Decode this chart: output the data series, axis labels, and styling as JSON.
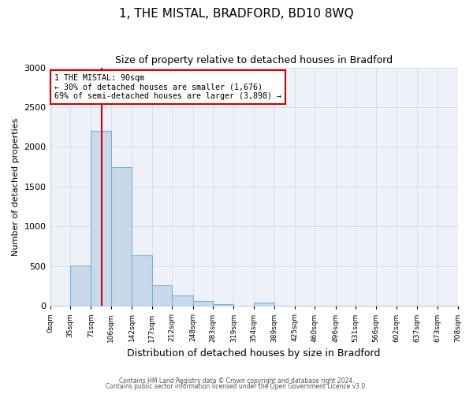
{
  "title": "1, THE MISTAL, BRADFORD, BD10 8WQ",
  "subtitle": "Size of property relative to detached houses in Bradford",
  "xlabel": "Distribution of detached houses by size in Bradford",
  "ylabel": "Number of detached properties",
  "bin_edges": [
    0,
    35,
    71,
    106,
    142,
    177,
    212,
    248,
    283,
    319,
    354,
    389,
    425,
    460,
    496,
    531,
    566,
    602,
    637,
    673,
    708
  ],
  "bin_labels": [
    "0sqm",
    "35sqm",
    "71sqm",
    "106sqm",
    "142sqm",
    "177sqm",
    "212sqm",
    "248sqm",
    "283sqm",
    "319sqm",
    "354sqm",
    "389sqm",
    "425sqm",
    "460sqm",
    "496sqm",
    "531sqm",
    "566sqm",
    "602sqm",
    "637sqm",
    "673sqm",
    "708sqm"
  ],
  "counts": [
    0,
    510,
    2200,
    1750,
    640,
    265,
    130,
    65,
    25,
    5,
    40,
    5,
    0,
    0,
    0,
    0,
    0,
    0,
    0,
    0
  ],
  "bar_color": "#c8daea",
  "bar_edge_color": "#7bafd4",
  "property_line_x": 90,
  "annotation_title": "1 THE MISTAL: 90sqm",
  "annotation_line1": "← 30% of detached houses are smaller (1,676)",
  "annotation_line2": "69% of semi-detached houses are larger (3,898) →",
  "annotation_box_color": "#ffffff",
  "annotation_box_edge": "#cc0000",
  "property_line_color": "#cc0000",
  "ylim": [
    0,
    3000
  ],
  "yticks": [
    0,
    500,
    1000,
    1500,
    2000,
    2500,
    3000
  ],
  "footer1": "Contains HM Land Registry data © Crown copyright and database right 2024.",
  "footer2": "Contains public sector information licensed under the Open Government Licence v3.0.",
  "grid_color": "#d5e0ee",
  "background_color": "#ffffff",
  "ax_background": "#eef2f8"
}
